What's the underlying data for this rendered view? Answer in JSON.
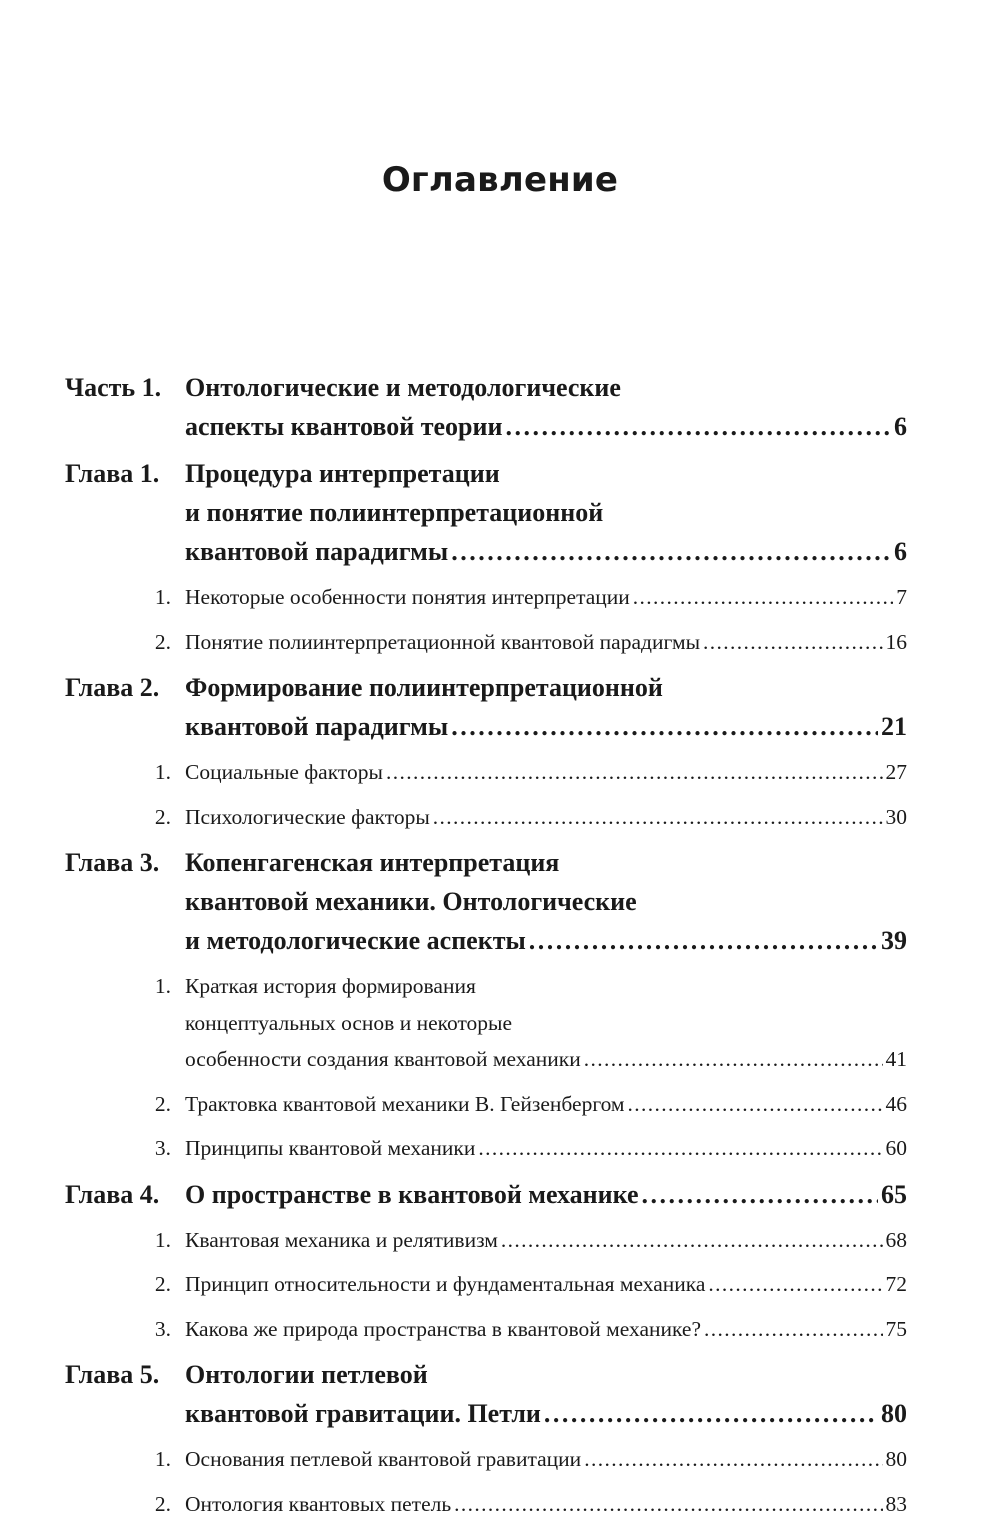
{
  "title": "Оглавление",
  "entries": [
    {
      "type": "main",
      "label": "Часть 1.",
      "lines": [
        "Онтологические и методологические",
        "аспекты квантовой теории"
      ],
      "page": "6"
    },
    {
      "type": "main",
      "label": "Глава 1.",
      "lines": [
        "Процедура интерпретации",
        "и понятие полиинтерпретационной",
        "квантовой парадигмы"
      ],
      "page": "6"
    },
    {
      "type": "sub",
      "label": "1.",
      "lines": [
        "Некоторые особенности понятия интерпретации"
      ],
      "page": "7"
    },
    {
      "type": "sub",
      "label": "2.",
      "lines": [
        "Понятие полиинтерпретационной квантовой парадигмы"
      ],
      "page": "16"
    },
    {
      "type": "main",
      "label": "Глава 2.",
      "lines": [
        "Формирование полиинтерпретационной",
        "квантовой парадигмы"
      ],
      "page": "21"
    },
    {
      "type": "sub",
      "label": "1.",
      "lines": [
        "Социальные факторы"
      ],
      "page": "27"
    },
    {
      "type": "sub",
      "label": "2.",
      "lines": [
        "Психологические факторы"
      ],
      "page": "30"
    },
    {
      "type": "main",
      "label": "Глава 3.",
      "lines": [
        "Копенгагенская интерпретация",
        "квантовой механики. Онтологические",
        "и методологические аспекты"
      ],
      "page": "39"
    },
    {
      "type": "sub",
      "label": "1.",
      "lines": [
        "Краткая история формирования",
        "концептуальных основ и некоторые",
        "особенности создания квантовой механики"
      ],
      "page": "41"
    },
    {
      "type": "sub",
      "label": "2.",
      "lines": [
        "Трактовка квантовой механики В. Гейзенбергом"
      ],
      "page": "46"
    },
    {
      "type": "sub",
      "label": "3.",
      "lines": [
        "Принципы квантовой механики"
      ],
      "page": "60"
    },
    {
      "type": "main",
      "label": "Глава 4.",
      "lines": [
        "О пространстве в квантовой механике"
      ],
      "page": "65"
    },
    {
      "type": "sub",
      "label": "1.",
      "lines": [
        "Квантовая механика и релятивизм"
      ],
      "page": "68"
    },
    {
      "type": "sub",
      "label": "2.",
      "lines": [
        "Принцип относительности и фундаментальная механика"
      ],
      "page": "72"
    },
    {
      "type": "sub",
      "label": "3.",
      "lines": [
        "Какова же природа пространства в квантовой механике?"
      ],
      "page": "75"
    },
    {
      "type": "main",
      "label": "Глава 5.",
      "lines": [
        "Онтологии петлевой",
        "квантовой гравитации. Петли"
      ],
      "page": "80"
    },
    {
      "type": "sub",
      "label": "1.",
      "lines": [
        "Основания петлевой квантовой гравитации"
      ],
      "page": "80"
    },
    {
      "type": "sub",
      "label": "2.",
      "lines": [
        "Онтология квантовых петель"
      ],
      "page": "83"
    }
  ]
}
